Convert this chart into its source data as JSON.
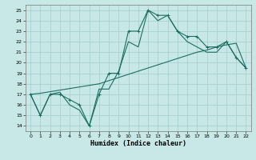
{
  "xlabel": "Humidex (Indice chaleur)",
  "bg_color": "#c8e8e8",
  "grid_color": "#a8d0d0",
  "line_color": "#1a6e60",
  "xlim": [
    -0.5,
    22.5
  ],
  "ylim": [
    13.5,
    25.5
  ],
  "xticks": [
    0,
    1,
    2,
    3,
    4,
    5,
    6,
    7,
    8,
    9,
    10,
    11,
    12,
    13,
    14,
    15,
    16,
    17,
    18,
    19,
    20,
    21,
    22
  ],
  "yticks": [
    14,
    15,
    16,
    17,
    18,
    19,
    20,
    21,
    22,
    23,
    24,
    25
  ],
  "curve1_x": [
    0,
    1,
    2,
    3,
    4,
    5,
    6,
    7,
    8,
    9,
    10,
    11,
    12,
    13,
    14,
    15,
    16,
    17,
    18,
    19,
    20,
    21,
    22
  ],
  "curve1_y": [
    17.0,
    15.0,
    17.0,
    17.0,
    16.5,
    16.0,
    14.0,
    17.0,
    19.0,
    19.0,
    23.0,
    23.0,
    25.0,
    24.5,
    24.5,
    23.0,
    22.5,
    22.5,
    21.5,
    21.5,
    22.0,
    20.5,
    19.5
  ],
  "curve2_x": [
    0,
    1,
    2,
    3,
    4,
    5,
    6,
    7,
    8,
    9,
    10,
    11,
    12,
    13,
    14,
    15,
    16,
    17,
    18,
    19,
    20,
    21,
    22
  ],
  "curve2_y": [
    17.0,
    15.0,
    17.0,
    17.2,
    16.0,
    15.5,
    14.0,
    17.5,
    17.5,
    19.2,
    22.0,
    21.5,
    25.0,
    24.0,
    24.5,
    23.0,
    22.0,
    21.5,
    21.0,
    21.0,
    22.0,
    20.5,
    19.5
  ],
  "curve3_x": [
    0,
    1,
    2,
    3,
    4,
    5,
    6,
    7,
    8,
    9,
    10,
    11,
    12,
    13,
    14,
    15,
    16,
    17,
    18,
    19,
    20,
    21,
    22
  ],
  "curve3_y": [
    17.0,
    17.1,
    17.25,
    17.4,
    17.55,
    17.7,
    17.85,
    18.0,
    18.3,
    18.6,
    18.9,
    19.2,
    19.5,
    19.8,
    20.1,
    20.4,
    20.7,
    21.0,
    21.2,
    21.5,
    21.7,
    21.85,
    19.5
  ]
}
